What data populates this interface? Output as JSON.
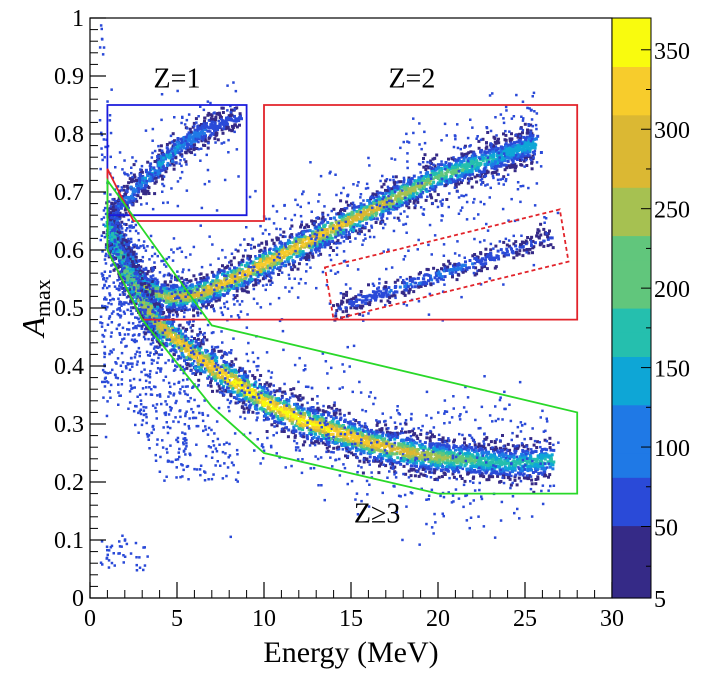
{
  "chart_data": {
    "type": "heatmap",
    "xlabel": "Energy (MeV)",
    "ylabel_main": "A",
    "ylabel_sub": "max",
    "xlim": [
      0,
      30
    ],
    "ylim": [
      0,
      1
    ],
    "x_ticks": [
      "0",
      "5",
      "10",
      "15",
      "20",
      "25",
      "30"
    ],
    "x_tick_values": [
      0,
      5,
      10,
      15,
      20,
      25,
      30
    ],
    "y_ticks": [
      "0",
      "0.1",
      "0.2",
      "0.3",
      "0.4",
      "0.5",
      "0.6",
      "0.7",
      "0.8",
      "0.9",
      "1"
    ],
    "y_tick_values": [
      0,
      0.1,
      0.2,
      0.3,
      0.4,
      0.5,
      0.6,
      0.7,
      0.8,
      0.9,
      1.0
    ],
    "colorbar": {
      "range": [
        5,
        370
      ],
      "ticks": [
        "5",
        "50",
        "100",
        "150",
        "200",
        "250",
        "300",
        "350"
      ],
      "tick_values": [
        5,
        50,
        100,
        150,
        200,
        250,
        300,
        350
      ],
      "palette": [
        "#352a87",
        "#2a4ad8",
        "#1f79e6",
        "#0ea6d6",
        "#25bfae",
        "#61c67c",
        "#a6c151",
        "#dbb833",
        "#f7cc2c",
        "#f9fb0e"
      ]
    },
    "bands": [
      {
        "label": "Z=1",
        "points": [
          [
            1.0,
            0.66
          ],
          [
            2.0,
            0.69
          ],
          [
            3.0,
            0.72
          ],
          [
            4.0,
            0.75
          ],
          [
            5.0,
            0.78
          ],
          [
            6.0,
            0.8
          ],
          [
            7.0,
            0.815
          ],
          [
            8.5,
            0.83
          ]
        ],
        "width": 0.012,
        "weight": 0.35
      },
      {
        "label": "Z=2",
        "points": [
          [
            1.0,
            0.66
          ],
          [
            2.0,
            0.59
          ],
          [
            3.0,
            0.54
          ],
          [
            4.5,
            0.52
          ],
          [
            6.0,
            0.525
          ],
          [
            8.0,
            0.55
          ],
          [
            10.0,
            0.58
          ],
          [
            12.0,
            0.61
          ],
          [
            14.0,
            0.64
          ],
          [
            16.0,
            0.67
          ],
          [
            18.0,
            0.7
          ],
          [
            20.0,
            0.73
          ],
          [
            22.0,
            0.75
          ],
          [
            24.0,
            0.77
          ],
          [
            25.5,
            0.785
          ]
        ],
        "width": 0.014,
        "weight": 0.9
      },
      {
        "label": "",
        "points": [
          [
            14.0,
            0.5
          ],
          [
            16.0,
            0.52
          ],
          [
            18.0,
            0.54
          ],
          [
            20.0,
            0.56
          ],
          [
            22.0,
            0.58
          ],
          [
            24.0,
            0.6
          ],
          [
            26.5,
            0.625
          ]
        ],
        "width": 0.009,
        "weight": 0.25
      },
      {
        "label": "Z≥3",
        "points": [
          [
            1.0,
            0.64
          ],
          [
            2.0,
            0.57
          ],
          [
            3.0,
            0.51
          ],
          [
            4.0,
            0.47
          ],
          [
            6.0,
            0.42
          ],
          [
            8.0,
            0.38
          ],
          [
            10.0,
            0.34
          ],
          [
            12.0,
            0.31
          ],
          [
            14.0,
            0.29
          ],
          [
            16.0,
            0.27
          ],
          [
            18.0,
            0.255
          ],
          [
            20.0,
            0.245
          ],
          [
            22.0,
            0.24
          ],
          [
            24.0,
            0.235
          ],
          [
            26.5,
            0.24
          ]
        ],
        "width": 0.016,
        "weight": 1.0
      }
    ],
    "regions": [
      {
        "label": "Z=1",
        "color": "#1a1adc",
        "style": "solid",
        "points": [
          [
            1.0,
            0.66
          ],
          [
            9.0,
            0.66
          ],
          [
            9.0,
            0.85
          ],
          [
            1.0,
            0.85
          ]
        ]
      },
      {
        "label": "Z=2",
        "color": "#e2232a",
        "style": "solid",
        "points": [
          [
            1.0,
            0.74
          ],
          [
            1.0,
            0.6
          ],
          [
            3.0,
            0.48
          ],
          [
            28.0,
            0.48
          ],
          [
            28.0,
            0.85
          ],
          [
            10.0,
            0.85
          ],
          [
            10.0,
            0.65
          ],
          [
            2.5,
            0.65
          ]
        ]
      },
      {
        "label": "",
        "color": "#e2232a",
        "style": "dashed",
        "points": [
          [
            13.5,
            0.57
          ],
          [
            27.0,
            0.67
          ],
          [
            27.5,
            0.58
          ],
          [
            14.0,
            0.48
          ]
        ]
      },
      {
        "label": "Z≥3",
        "color": "#29d829",
        "style": "solid",
        "points": [
          [
            1.0,
            0.72
          ],
          [
            7.0,
            0.47
          ],
          [
            28.0,
            0.32
          ],
          [
            28.0,
            0.18
          ],
          [
            20.0,
            0.18
          ],
          [
            10.0,
            0.25
          ],
          [
            7.0,
            0.33
          ],
          [
            3.0,
            0.48
          ],
          [
            1.0,
            0.6
          ]
        ]
      }
    ],
    "annotations": [
      {
        "text": "Z=1",
        "x": 5.0,
        "y": 0.88
      },
      {
        "text": "Z=2",
        "x": 18.5,
        "y": 0.88
      },
      {
        "text": "Z≥3",
        "x": 16.5,
        "y": 0.13
      }
    ],
    "grid": false,
    "legend": "none"
  }
}
